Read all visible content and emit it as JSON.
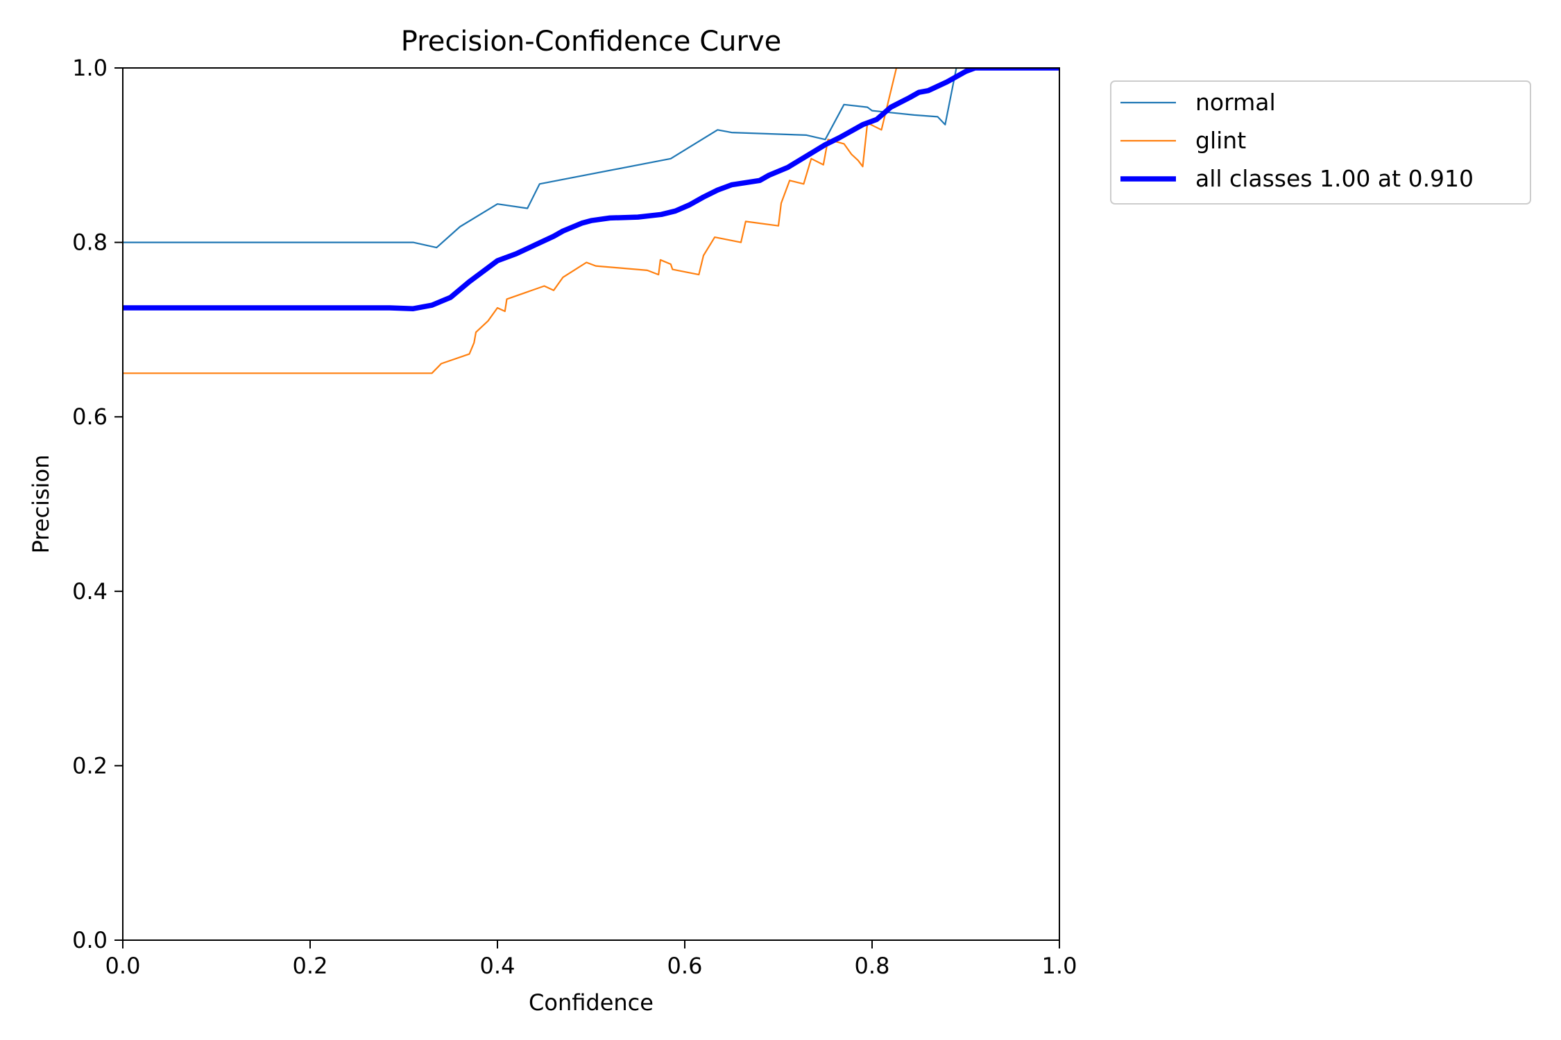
{
  "chart_data": {
    "type": "line",
    "title": "Precision-Confidence Curve",
    "xlabel": "Confidence",
    "ylabel": "Precision",
    "xlim": [
      0,
      1
    ],
    "ylim": [
      0,
      1
    ],
    "x_ticks": [
      "0.0",
      "0.2",
      "0.4",
      "0.6",
      "0.8",
      "1.0"
    ],
    "y_ticks": [
      "0.0",
      "0.2",
      "0.4",
      "0.6",
      "0.8",
      "1.0"
    ],
    "grid": false,
    "legend_position": "outside-top-right",
    "series": [
      {
        "name": "normal",
        "color": "#1f77b4",
        "points": [
          [
            0,
            0.8
          ],
          [
            0.31,
            0.8
          ],
          [
            0.335,
            0.794
          ],
          [
            0.36,
            0.818
          ],
          [
            0.4,
            0.844
          ],
          [
            0.432,
            0.839
          ],
          [
            0.445,
            0.867
          ],
          [
            0.585,
            0.896
          ],
          [
            0.635,
            0.929
          ],
          [
            0.65,
            0.926
          ],
          [
            0.73,
            0.923
          ],
          [
            0.75,
            0.918
          ],
          [
            0.77,
            0.958
          ],
          [
            0.795,
            0.955
          ],
          [
            0.8,
            0.951
          ],
          [
            0.845,
            0.946
          ],
          [
            0.87,
            0.944
          ],
          [
            0.878,
            0.935
          ],
          [
            0.89,
            1.0
          ],
          [
            1.0,
            1.0
          ]
        ]
      },
      {
        "name": "glint",
        "color": "#ff7f0e",
        "points": [
          [
            0,
            0.65
          ],
          [
            0.33,
            0.65
          ],
          [
            0.34,
            0.661
          ],
          [
            0.37,
            0.672
          ],
          [
            0.375,
            0.685
          ],
          [
            0.377,
            0.697
          ],
          [
            0.39,
            0.71
          ],
          [
            0.4,
            0.725
          ],
          [
            0.408,
            0.721
          ],
          [
            0.41,
            0.735
          ],
          [
            0.45,
            0.75
          ],
          [
            0.46,
            0.745
          ],
          [
            0.47,
            0.76
          ],
          [
            0.495,
            0.777
          ],
          [
            0.505,
            0.773
          ],
          [
            0.56,
            0.768
          ],
          [
            0.572,
            0.763
          ],
          [
            0.574,
            0.78
          ],
          [
            0.585,
            0.775
          ],
          [
            0.587,
            0.769
          ],
          [
            0.615,
            0.763
          ],
          [
            0.62,
            0.785
          ],
          [
            0.632,
            0.806
          ],
          [
            0.66,
            0.8
          ],
          [
            0.665,
            0.824
          ],
          [
            0.7,
            0.819
          ],
          [
            0.703,
            0.845
          ],
          [
            0.712,
            0.871
          ],
          [
            0.727,
            0.867
          ],
          [
            0.735,
            0.896
          ],
          [
            0.748,
            0.889
          ],
          [
            0.753,
            0.918
          ],
          [
            0.77,
            0.913
          ],
          [
            0.778,
            0.901
          ],
          [
            0.785,
            0.894
          ],
          [
            0.79,
            0.887
          ],
          [
            0.795,
            0.937
          ],
          [
            0.81,
            0.929
          ],
          [
            0.826,
            1.0
          ],
          [
            1.0,
            1.0
          ]
        ]
      },
      {
        "name": "all classes 1.00 at 0.910",
        "color": "#0000ff",
        "points": [
          [
            0,
            0.725
          ],
          [
            0.285,
            0.725
          ],
          [
            0.31,
            0.724
          ],
          [
            0.33,
            0.728
          ],
          [
            0.35,
            0.737
          ],
          [
            0.37,
            0.755
          ],
          [
            0.39,
            0.771
          ],
          [
            0.4,
            0.779
          ],
          [
            0.42,
            0.787
          ],
          [
            0.44,
            0.797
          ],
          [
            0.46,
            0.807
          ],
          [
            0.47,
            0.813
          ],
          [
            0.49,
            0.822
          ],
          [
            0.5,
            0.825
          ],
          [
            0.52,
            0.828
          ],
          [
            0.55,
            0.829
          ],
          [
            0.575,
            0.832
          ],
          [
            0.59,
            0.836
          ],
          [
            0.605,
            0.843
          ],
          [
            0.62,
            0.852
          ],
          [
            0.635,
            0.86
          ],
          [
            0.65,
            0.866
          ],
          [
            0.68,
            0.871
          ],
          [
            0.69,
            0.877
          ],
          [
            0.71,
            0.886
          ],
          [
            0.73,
            0.899
          ],
          [
            0.75,
            0.912
          ],
          [
            0.765,
            0.92
          ],
          [
            0.775,
            0.926
          ],
          [
            0.79,
            0.935
          ],
          [
            0.805,
            0.941
          ],
          [
            0.82,
            0.955
          ],
          [
            0.84,
            0.966
          ],
          [
            0.85,
            0.972
          ],
          [
            0.86,
            0.974
          ],
          [
            0.88,
            0.984
          ],
          [
            0.9,
            0.996
          ],
          [
            0.91,
            1.0
          ],
          [
            1.0,
            1.0
          ]
        ]
      }
    ]
  }
}
